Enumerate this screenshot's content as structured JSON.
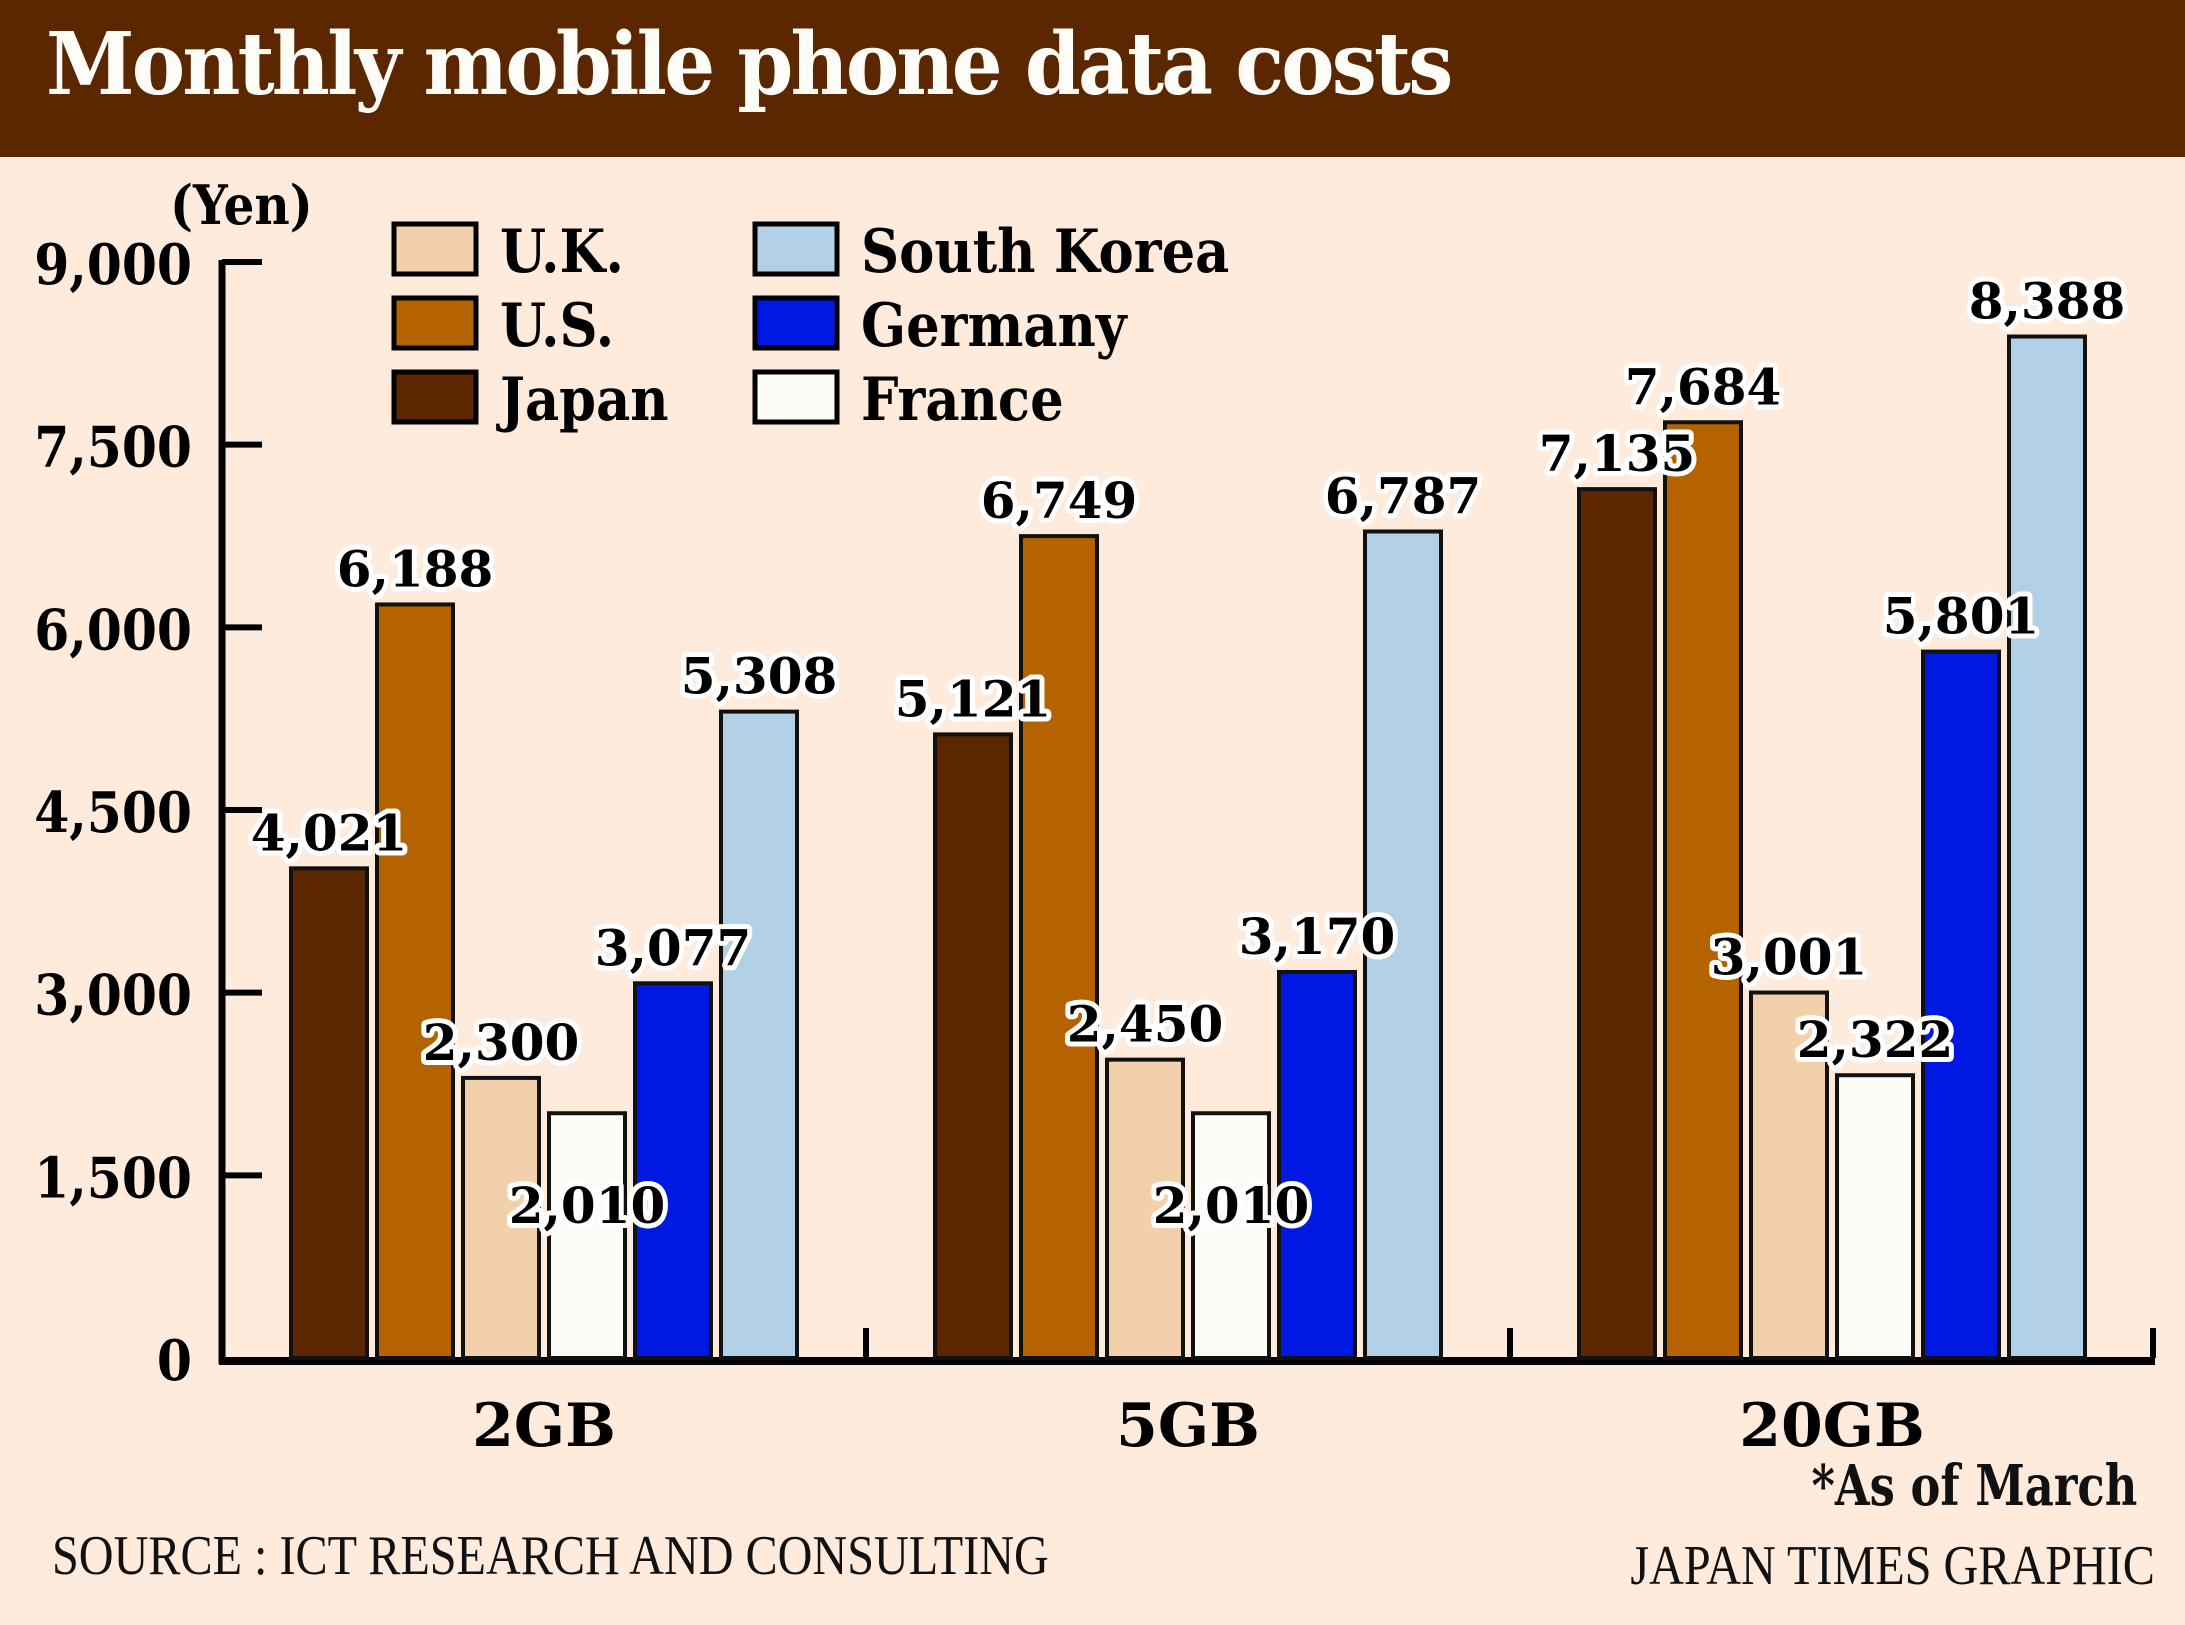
{
  "header": {
    "title": "Monthly mobile phone data costs"
  },
  "footer": {
    "source": "SOURCE : ICT RESEARCH AND CONSULTING",
    "credit": "JAPAN TIMES GRAPHIC",
    "note": "*As of March"
  },
  "colors": {
    "title_bar": "#5a2700",
    "background": "#feebdc",
    "Japan": "#5b2600",
    "U.S.": "#b56300",
    "U.K.": "#f2d0ab",
    "France": "#fbfcf6",
    "Germany": "#0019e2",
    "South Korea": "#b2d1e6"
  },
  "chart_data": {
    "type": "bar",
    "title": "Monthly mobile phone data costs",
    "xlabel": "",
    "ylabel": "(Yen)",
    "ylim": [
      0,
      9000
    ],
    "yticks": [
      0,
      1500,
      3000,
      4500,
      6000,
      7500,
      9000
    ],
    "ytick_labels": [
      "0",
      "1,500",
      "3,000",
      "4,500",
      "6,000",
      "7,500",
      "9,000"
    ],
    "grid": false,
    "legend_position": "top-left",
    "legend_order": [
      "U.K.",
      "U.S.",
      "Japan",
      "South Korea",
      "Germany",
      "France"
    ],
    "categories": [
      "2GB",
      "5GB",
      "20GB"
    ],
    "series": [
      {
        "name": "Japan",
        "values": [
          4021,
          5121,
          7135
        ],
        "labels": [
          "4,021",
          "5,121",
          "7,135"
        ]
      },
      {
        "name": "U.S.",
        "values": [
          6188,
          6749,
          7684
        ],
        "labels": [
          "6,188",
          "6,749",
          "7,684"
        ]
      },
      {
        "name": "U.K.",
        "values": [
          2300,
          2450,
          3001
        ],
        "labels": [
          "2,300",
          "2,450",
          "3,001"
        ]
      },
      {
        "name": "France",
        "values": [
          2010,
          2010,
          2322
        ],
        "labels": [
          "2,010",
          "2,010",
          "2,322"
        ]
      },
      {
        "name": "Germany",
        "values": [
          3077,
          3170,
          5801
        ],
        "labels": [
          "3,077",
          "3,170",
          "5,801"
        ]
      },
      {
        "name": "South Korea",
        "values": [
          5308,
          6787,
          8388
        ],
        "labels": [
          "5,308",
          "6,787",
          "8,388"
        ]
      }
    ],
    "annotations": [
      "*As of March"
    ]
  }
}
